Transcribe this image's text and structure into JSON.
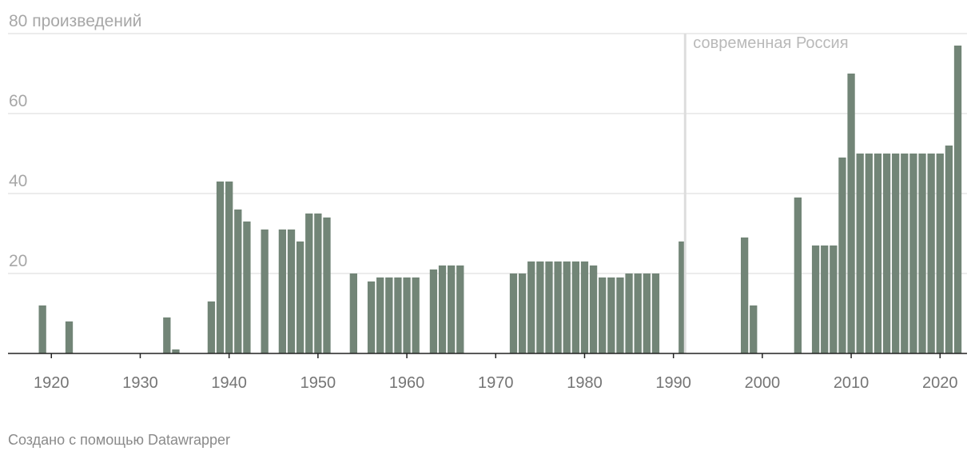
{
  "chart_data": {
    "type": "bar",
    "title": "",
    "xlabel": "",
    "ylabel": "",
    "y_unit_label": "80 произведений",
    "ylim": [
      0,
      80
    ],
    "xlim": [
      1917,
      2022.5
    ],
    "y_ticks": [
      20,
      40,
      60,
      80
    ],
    "x_ticks": [
      1920,
      1930,
      1940,
      1950,
      1960,
      1970,
      1980,
      1990,
      2000,
      2010,
      2020
    ],
    "grid": true,
    "bar_color": "#728577",
    "grid_color": "#e5e5e5",
    "axis_color": "#222222",
    "annotation": {
      "x": 1992,
      "label": "современная Россия",
      "color": "#dddddd"
    },
    "series": [
      {
        "x": [
          1919,
          1922,
          1933,
          1934,
          1938,
          1939,
          1940,
          1941,
          1942,
          1944,
          1946,
          1947,
          1948,
          1949,
          1950,
          1951,
          1954,
          1956,
          1957,
          1958,
          1959,
          1960,
          1961,
          1963,
          1964,
          1965,
          1966,
          1972,
          1973,
          1974,
          1975,
          1976,
          1977,
          1978,
          1979,
          1980,
          1981,
          1982,
          1983,
          1984,
          1985,
          1986,
          1987,
          1988,
          1991,
          1998,
          1999,
          2004,
          2006,
          2007,
          2008,
          2009,
          2010,
          2011,
          2012,
          2013,
          2014,
          2015,
          2016,
          2017,
          2018,
          2019,
          2020,
          2021,
          2022
        ],
        "values": [
          12,
          8,
          9,
          1,
          13,
          43,
          43,
          36,
          33,
          31,
          31,
          31,
          28,
          35,
          35,
          34,
          20,
          18,
          19,
          19,
          19,
          19,
          19,
          21,
          22,
          22,
          22,
          20,
          20,
          23,
          23,
          23,
          23,
          23,
          23,
          23,
          22,
          19,
          19,
          19,
          20,
          20,
          20,
          20,
          28,
          29,
          12,
          39,
          27,
          27,
          27,
          49,
          70,
          50,
          50,
          50,
          50,
          50,
          50,
          50,
          50,
          50,
          50,
          52,
          77
        ]
      }
    ]
  },
  "footer": {
    "credit": "Создано с помощью Datawrapper"
  }
}
